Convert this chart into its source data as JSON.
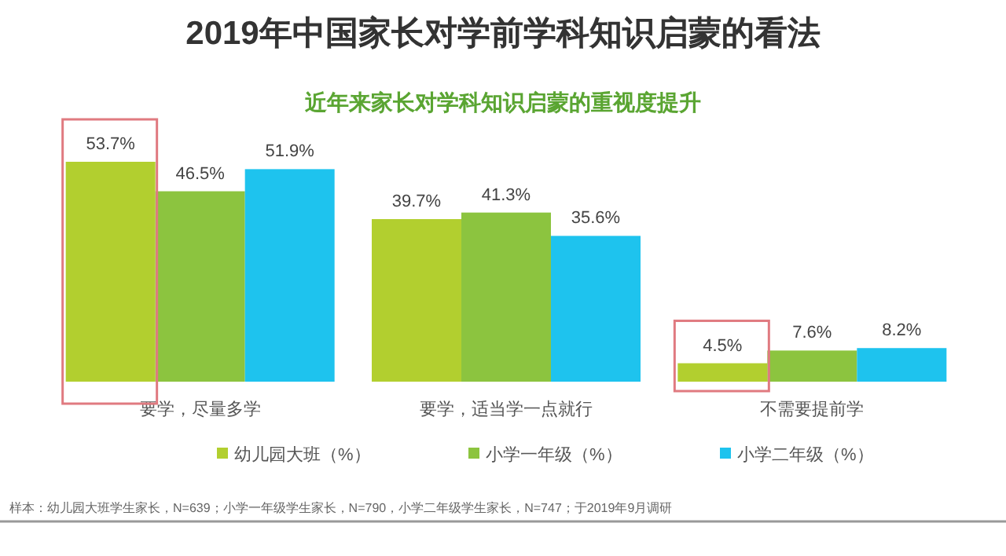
{
  "chart_data": {
    "type": "bar",
    "title": "2019年中国家长对学前学科知识启蒙的看法",
    "subtitle": "近年来家长对学科知识启蒙的重视度提升",
    "categories": [
      "要学，尽量多学",
      "要学，适当学一点就行",
      "不需要提前学"
    ],
    "series": [
      {
        "name": "幼儿园大班（%）",
        "color": "#b2cf2f",
        "values": [
          53.7,
          39.7,
          4.5
        ],
        "value_labels": [
          "53.7%",
          "39.7%",
          "4.5%"
        ]
      },
      {
        "name": "小学一年级（%）",
        "color": "#8cc43f",
        "values": [
          46.5,
          41.3,
          7.6
        ],
        "value_labels": [
          "46.5%",
          "41.3%",
          "7.6%"
        ]
      },
      {
        "name": "小学二年级（%）",
        "color": "#1ec3ee",
        "values": [
          51.9,
          35.6,
          8.2
        ],
        "value_labels": [
          "51.9%",
          "35.6%",
          "8.2%"
        ]
      }
    ],
    "legend": "bottom",
    "annotations": [
      "样本：幼儿园大班学生家长，N=639；小学一年级学生家长，N=790，小学二年级学生家长，N=747；于2019年9月调研"
    ]
  }
}
